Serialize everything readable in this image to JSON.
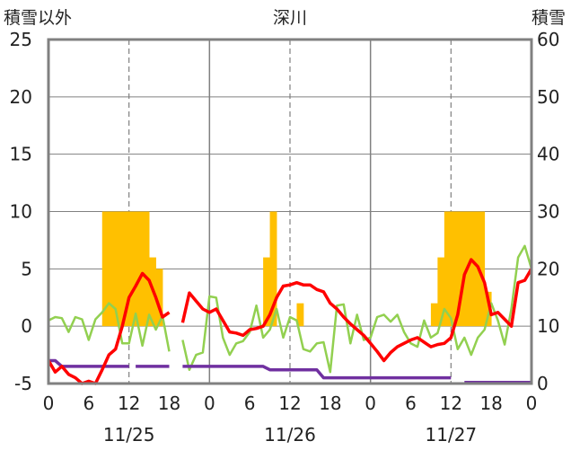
{
  "chart_data": {
    "type": "bar+line",
    "title": "深川",
    "left_axis_label": "積雪以外",
    "right_axis_label": "積雪",
    "y_left": {
      "range": [
        -5,
        25
      ],
      "ticks": [
        -5,
        0,
        5,
        10,
        15,
        20,
        25
      ]
    },
    "y_right": {
      "range": [
        0,
        60
      ],
      "ticks": [
        0,
        10,
        20,
        30,
        40,
        50,
        60
      ]
    },
    "x_ticks": [
      "0",
      "6",
      "12",
      "18",
      "0",
      "6",
      "12",
      "18",
      "0",
      "6",
      "12",
      "18",
      "0"
    ],
    "date_labels": [
      "11/25",
      "11/26",
      "11/27"
    ],
    "grid": {
      "day_lines": true,
      "noon_lines_dashed": true
    },
    "colors": {
      "bars": "#FFC000",
      "red": "#FF0000",
      "green": "#92D050",
      "purple": "#7030A0",
      "frame": "#808080"
    },
    "bars": [
      [
        8,
        10
      ],
      [
        9,
        10
      ],
      [
        10,
        10
      ],
      [
        11,
        10
      ],
      [
        12,
        10
      ],
      [
        13,
        10
      ],
      [
        14,
        10
      ],
      [
        15,
        6
      ],
      [
        16,
        5
      ],
      [
        32,
        6
      ],
      [
        33,
        10
      ],
      [
        37,
        2
      ],
      [
        57,
        2
      ],
      [
        58,
        6
      ],
      [
        59,
        10
      ],
      [
        60,
        10
      ],
      [
        61,
        10
      ],
      [
        62,
        10
      ],
      [
        63,
        10
      ],
      [
        64,
        10
      ],
      [
        65,
        3
      ]
    ],
    "red": [
      [
        [
          0,
          -3
        ],
        [
          1,
          -4
        ],
        [
          2,
          -3.5
        ],
        [
          3,
          -4.2
        ],
        [
          4,
          -4.5
        ],
        [
          5,
          -5
        ],
        [
          6,
          -4.8
        ],
        [
          7,
          -5
        ],
        [
          8,
          -3.8
        ],
        [
          9,
          -2.5
        ],
        [
          10,
          -2
        ],
        [
          11,
          0
        ],
        [
          12,
          2.5
        ],
        [
          13,
          3.5
        ],
        [
          14,
          4.6
        ],
        [
          15,
          4
        ],
        [
          16,
          2.5
        ],
        [
          17,
          0.8
        ],
        [
          18,
          1.2
        ]
      ],
      [
        [
          20,
          0.3
        ],
        [
          21,
          2.9
        ],
        [
          22,
          2.2
        ],
        [
          23,
          1.5
        ],
        [
          24,
          1.2
        ],
        [
          25,
          1.5
        ],
        [
          26,
          0.5
        ],
        [
          27,
          -0.5
        ],
        [
          28,
          -0.6
        ],
        [
          29,
          -0.8
        ],
        [
          30,
          -0.3
        ],
        [
          31,
          -0.2
        ],
        [
          32,
          0
        ],
        [
          33,
          1
        ],
        [
          34,
          2.5
        ],
        [
          35,
          3.5
        ],
        [
          36,
          3.6
        ],
        [
          37,
          3.8
        ],
        [
          38,
          3.6
        ],
        [
          39,
          3.6
        ],
        [
          40,
          3.2
        ],
        [
          41,
          3
        ],
        [
          42,
          2
        ],
        [
          43,
          1.5
        ],
        [
          44,
          0.8
        ],
        [
          45,
          0.2
        ],
        [
          46,
          -0.3
        ],
        [
          47,
          -0.8
        ],
        [
          48,
          -1.5
        ],
        [
          49,
          -2.2
        ],
        [
          50,
          -3
        ],
        [
          51,
          -2.3
        ],
        [
          52,
          -1.8
        ],
        [
          53,
          -1.5
        ],
        [
          54,
          -1.2
        ],
        [
          55,
          -1
        ],
        [
          56,
          -1.4
        ],
        [
          57,
          -1.8
        ],
        [
          58,
          -1.6
        ],
        [
          59,
          -1.5
        ],
        [
          60,
          -1
        ],
        [
          61,
          1
        ],
        [
          62,
          4.5
        ],
        [
          63,
          5.8
        ],
        [
          64,
          5.2
        ],
        [
          65,
          3.8
        ],
        [
          66,
          1
        ],
        [
          67,
          1.2
        ],
        [
          68,
          0.6
        ],
        [
          69,
          0
        ],
        [
          70,
          3.8
        ],
        [
          71,
          4
        ],
        [
          72,
          5
        ]
      ]
    ],
    "green": [
      [
        [
          0,
          0.5
        ],
        [
          1,
          0.8
        ],
        [
          2,
          0.7
        ],
        [
          3,
          -0.5
        ],
        [
          4,
          0.8
        ],
        [
          5,
          0.6
        ],
        [
          6,
          -1.2
        ],
        [
          7,
          0.6
        ],
        [
          8,
          1.2
        ],
        [
          9,
          2
        ],
        [
          10,
          1.5
        ],
        [
          11,
          -1.5
        ],
        [
          12,
          -1.5
        ],
        [
          13,
          1.1
        ],
        [
          14,
          -1.7
        ],
        [
          15,
          1
        ],
        [
          16,
          -0.3
        ],
        [
          17,
          0.9
        ],
        [
          18,
          -2.2
        ]
      ],
      [
        [
          20,
          -1.2
        ],
        [
          21,
          -3.8
        ],
        [
          22,
          -2.5
        ],
        [
          23,
          -2.3
        ],
        [
          24,
          2.6
        ],
        [
          25,
          2.5
        ],
        [
          26,
          -1
        ],
        [
          27,
          -2.5
        ],
        [
          28,
          -1.5
        ],
        [
          29,
          -1.3
        ],
        [
          30,
          -0.5
        ],
        [
          31,
          1.8
        ],
        [
          32,
          -1
        ],
        [
          33,
          -0.3
        ],
        [
          34,
          1.5
        ],
        [
          35,
          -1
        ],
        [
          36,
          0.8
        ],
        [
          37,
          0.5
        ],
        [
          38,
          -2
        ],
        [
          39,
          -2.2
        ],
        [
          40,
          -1.5
        ],
        [
          41,
          -1.4
        ],
        [
          42,
          -4
        ],
        [
          43,
          1.8
        ],
        [
          44,
          1.9
        ],
        [
          45,
          -1.5
        ],
        [
          46,
          1
        ],
        [
          47,
          -1.2
        ],
        [
          48,
          -1
        ],
        [
          49,
          0.8
        ],
        [
          50,
          1
        ],
        [
          51,
          0.4
        ],
        [
          52,
          1
        ],
        [
          53,
          -0.5
        ],
        [
          54,
          -1.5
        ],
        [
          55,
          -1.8
        ],
        [
          56,
          0.5
        ],
        [
          57,
          -1
        ],
        [
          58,
          -0.6
        ],
        [
          59,
          1.5
        ],
        [
          60,
          0.7
        ],
        [
          61,
          -2
        ],
        [
          62,
          -1
        ],
        [
          63,
          -2.5
        ],
        [
          64,
          -1
        ],
        [
          65,
          -0.3
        ],
        [
          66,
          2
        ],
        [
          67,
          0.5
        ],
        [
          68,
          -1.6
        ],
        [
          69,
          1.5
        ],
        [
          70,
          6
        ],
        [
          71,
          7
        ],
        [
          72,
          5
        ]
      ]
    ],
    "purple": [
      [
        [
          0,
          -3
        ],
        [
          1,
          -3
        ],
        [
          2,
          -3.5
        ],
        [
          3,
          -3.5
        ],
        [
          4,
          -3.5
        ],
        [
          5,
          -3.5
        ],
        [
          6,
          -3.5
        ],
        [
          7,
          -3.5
        ],
        [
          8,
          -3.5
        ],
        [
          9,
          -3.5
        ],
        [
          10,
          -3.5
        ],
        [
          11,
          -3.5
        ],
        [
          12,
          -3.5
        ]
      ],
      [
        [
          13,
          -3.5
        ],
        [
          14,
          -3.5
        ],
        [
          15,
          -3.5
        ],
        [
          16,
          -3.5
        ],
        [
          17,
          -3.5
        ],
        [
          18,
          -3.5
        ]
      ],
      [
        [
          20,
          -3.5
        ],
        [
          21,
          -3.5
        ],
        [
          22,
          -3.5
        ],
        [
          23,
          -3.5
        ],
        [
          24,
          -3.5
        ],
        [
          25,
          -3.5
        ],
        [
          26,
          -3.5
        ],
        [
          27,
          -3.5
        ],
        [
          28,
          -3.5
        ],
        [
          29,
          -3.5
        ],
        [
          30,
          -3.5
        ],
        [
          31,
          -3.5
        ],
        [
          32,
          -3.5
        ],
        [
          33,
          -3.8
        ],
        [
          34,
          -3.8
        ],
        [
          35,
          -3.8
        ],
        [
          36,
          -3.8
        ],
        [
          37,
          -3.8
        ],
        [
          38,
          -3.8
        ],
        [
          39,
          -3.8
        ],
        [
          40,
          -3.8
        ],
        [
          41,
          -4.5
        ],
        [
          42,
          -4.5
        ],
        [
          43,
          -4.5
        ],
        [
          44,
          -4.5
        ],
        [
          45,
          -4.5
        ],
        [
          46,
          -4.5
        ],
        [
          47,
          -4.5
        ],
        [
          48,
          -4.5
        ],
        [
          49,
          -4.5
        ],
        [
          50,
          -4.5
        ],
        [
          51,
          -4.5
        ],
        [
          52,
          -4.5
        ],
        [
          53,
          -4.5
        ],
        [
          54,
          -4.5
        ],
        [
          55,
          -4.5
        ],
        [
          56,
          -4.5
        ],
        [
          57,
          -4.5
        ],
        [
          58,
          -4.5
        ],
        [
          59,
          -4.5
        ],
        [
          60,
          -4.5
        ]
      ],
      [
        [
          62,
          -4.9
        ],
        [
          63,
          -4.9
        ],
        [
          64,
          -4.9
        ],
        [
          65,
          -4.9
        ],
        [
          66,
          -4.9
        ],
        [
          67,
          -4.9
        ],
        [
          68,
          -4.9
        ],
        [
          69,
          -4.9
        ],
        [
          70,
          -4.9
        ],
        [
          71,
          -4.9
        ],
        [
          72,
          -4.9
        ]
      ]
    ]
  }
}
